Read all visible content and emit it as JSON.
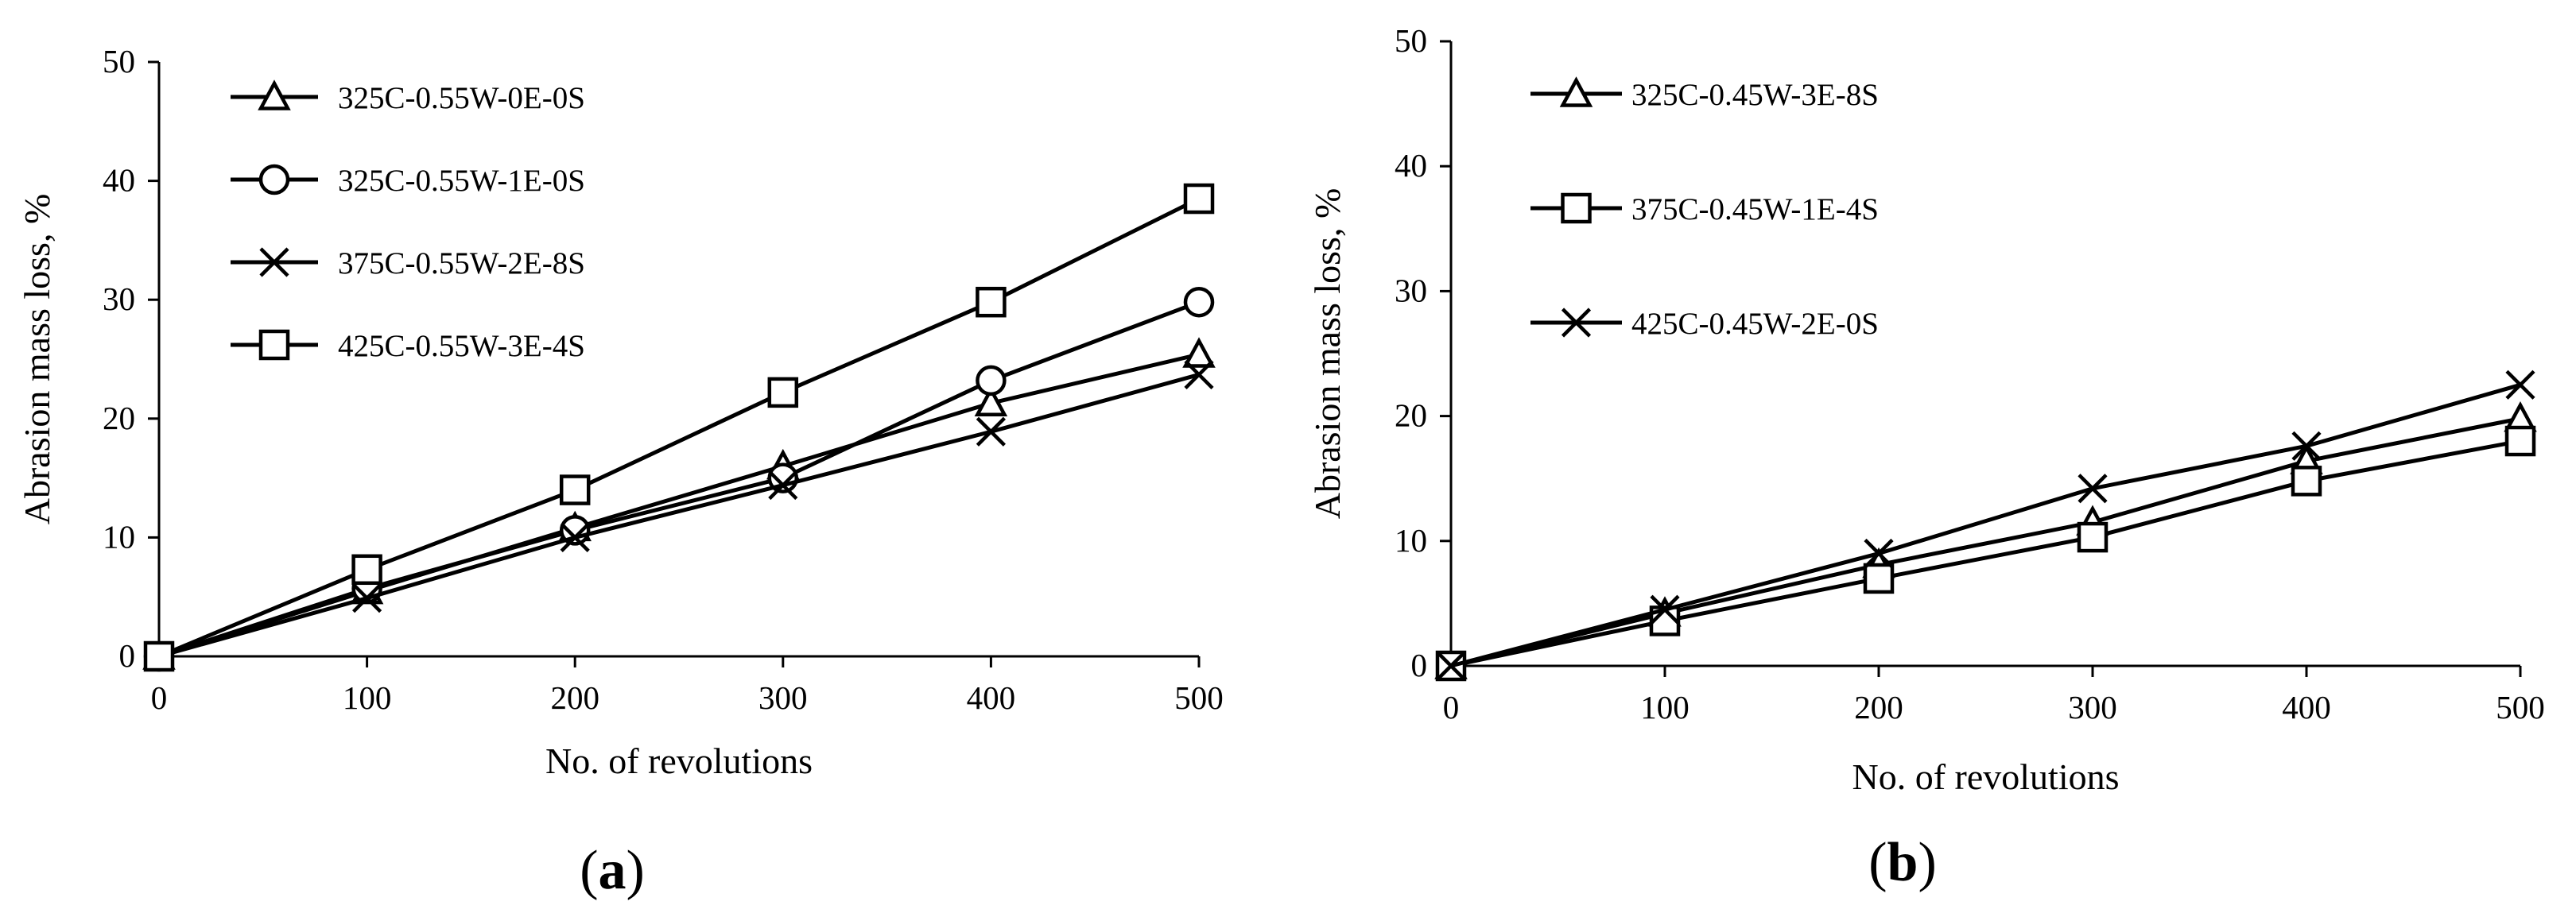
{
  "chart_data": [
    {
      "type": "line",
      "panel_label": "(a)",
      "panel_letter": "a",
      "xlabel": "No. of revolutions",
      "ylabel": "Abrasion mass loss, %",
      "xlim": [
        0,
        500
      ],
      "ylim": [
        0,
        50
      ],
      "xticks": [
        0,
        100,
        200,
        300,
        400,
        500
      ],
      "yticks": [
        0,
        10,
        20,
        30,
        40,
        50
      ],
      "x": [
        0,
        100,
        200,
        300,
        400,
        500
      ],
      "legend_position": "top-left",
      "series": [
        {
          "name": "325C-0.55W-0E-0S",
          "marker": "triangle",
          "values": [
            0,
            5.5,
            10.8,
            16.0,
            21.3,
            25.4
          ]
        },
        {
          "name": "325C-0.55W-1E-0S",
          "marker": "circle",
          "values": [
            0,
            5.7,
            10.6,
            15.0,
            23.2,
            29.8
          ]
        },
        {
          "name": "375C-0.55W-2E-8S",
          "marker": "x",
          "values": [
            0,
            4.9,
            10.0,
            14.4,
            18.9,
            23.7
          ]
        },
        {
          "name": "425C-0.55W-3E-4S",
          "marker": "square",
          "values": [
            0,
            7.3,
            14.0,
            22.2,
            29.8,
            38.5
          ]
        }
      ]
    },
    {
      "type": "line",
      "panel_label": "(b)",
      "panel_letter": "b",
      "xlabel": "No. of revolutions",
      "ylabel": "Abrasion mass loss, %",
      "xlim": [
        0,
        500
      ],
      "ylim": [
        0,
        50
      ],
      "xticks": [
        0,
        100,
        200,
        300,
        400,
        500
      ],
      "yticks": [
        0,
        10,
        20,
        30,
        40,
        50
      ],
      "x": [
        0,
        100,
        200,
        300,
        400,
        500
      ],
      "legend_position": "top-left",
      "series": [
        {
          "name": "325C-0.45W-3E-8S",
          "marker": "triangle",
          "values": [
            0,
            4.2,
            8.1,
            11.5,
            16.4,
            19.8
          ]
        },
        {
          "name": "375C-0.45W-1E-4S",
          "marker": "square",
          "values": [
            0,
            3.6,
            7.0,
            10.3,
            14.8,
            18.0
          ]
        },
        {
          "name": "425C-0.45W-2E-0S",
          "marker": "x",
          "values": [
            0,
            4.5,
            9.0,
            14.2,
            17.6,
            22.5
          ]
        }
      ]
    }
  ]
}
